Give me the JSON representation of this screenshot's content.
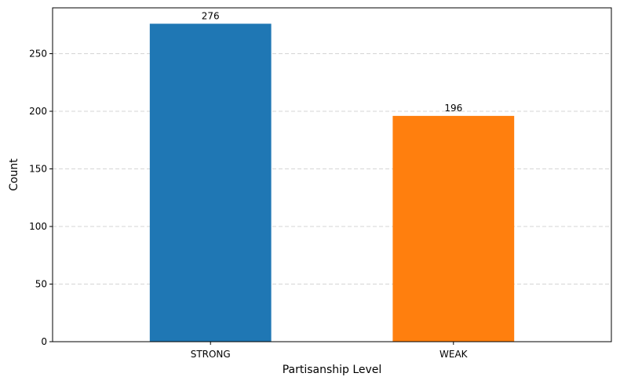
{
  "chart_data": {
    "type": "bar",
    "categories": [
      "STRONG",
      "WEAK"
    ],
    "values": [
      276,
      196
    ],
    "value_labels": [
      "276",
      "196"
    ],
    "colors": [
      "#1f77b4",
      "#ff7f0e"
    ],
    "xlabel": "Partisanship Level",
    "ylabel": "Count",
    "ylim": [
      0,
      289.8
    ],
    "yticks": [
      0,
      50,
      100,
      150,
      200,
      250
    ],
    "ytick_labels": [
      "0",
      "50",
      "100",
      "150",
      "200",
      "250"
    ],
    "grid": "y-axis dashed",
    "legend": "none"
  }
}
